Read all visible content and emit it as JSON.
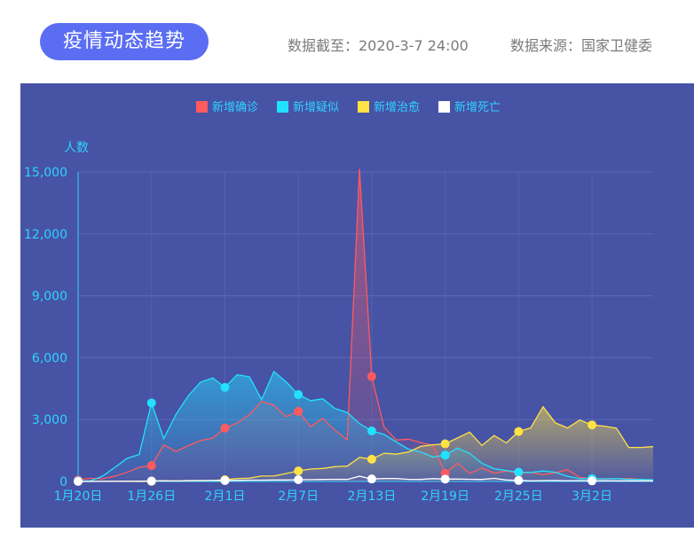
{
  "header": {
    "title": "疫情动态趋势",
    "as_of": "数据截至：2020-3-7 24:00",
    "source": "数据来源：国家卫健委"
  },
  "colors": {
    "panel_bg": "#4753a5",
    "confirmed": "#ff5a5f",
    "suspected": "#22e1ff",
    "cured": "#ffe245",
    "death": "#ffffff",
    "axis_text": "#2fd3ff",
    "grid": "#5d69b4"
  },
  "chart_data": {
    "type": "line",
    "ylabel": "人数",
    "ylim": [
      0,
      15000
    ],
    "y_ticks": [
      "0",
      "3,000",
      "6,000",
      "9,000",
      "12,000",
      "15,000"
    ],
    "y_tick_values": [
      0,
      3000,
      6000,
      9000,
      12000,
      15000
    ],
    "x_tick_labels": [
      "1月20日",
      "1月26日",
      "2月1日",
      "2月7日",
      "2月13日",
      "2月19日",
      "2月25日",
      "3月2日"
    ],
    "x_tick_index": [
      0,
      6,
      12,
      18,
      24,
      30,
      36,
      42
    ],
    "x_dates": [
      "1/20",
      "1/21",
      "1/22",
      "1/23",
      "1/24",
      "1/25",
      "1/26",
      "1/27",
      "1/28",
      "1/29",
      "1/30",
      "1/31",
      "2/1",
      "2/2",
      "2/3",
      "2/4",
      "2/5",
      "2/6",
      "2/7",
      "2/8",
      "2/9",
      "2/10",
      "2/11",
      "2/12",
      "2/13",
      "2/14",
      "2/15",
      "2/16",
      "2/17",
      "2/18",
      "2/19",
      "2/20",
      "2/21",
      "2/22",
      "2/23",
      "2/24",
      "2/25",
      "2/26",
      "2/27",
      "2/28",
      "2/29",
      "3/1",
      "3/2",
      "3/3",
      "3/4",
      "3/5",
      "3/6",
      "3/7"
    ],
    "legend": "top-center",
    "grid": true,
    "series": [
      {
        "name": "新增确诊",
        "color": "#ff5a5f",
        "values": [
          77,
          149,
          131,
          259,
          444,
          688,
          769,
          1771,
          1459,
          1737,
          1982,
          2102,
          2590,
          2829,
          3235,
          3887,
          3694,
          3143,
          3399,
          2656,
          3062,
          2478,
          2015,
          15152,
          5090,
          2641,
          2009,
          2048,
          1886,
          1749,
          394,
          889,
          397,
          648,
          409,
          508,
          406,
          433,
          327,
          427,
          573,
          202,
          125,
          119,
          139,
          143,
          99,
          44
        ],
        "markers": [
          0,
          6,
          12,
          18,
          24,
          30,
          36,
          42
        ]
      },
      {
        "name": "新增疑似",
        "color": "#22e1ff",
        "values": [
          27,
          26,
          257,
          680,
          1118,
          1309,
          3806,
          2077,
          3248,
          4148,
          4812,
          5019,
          4562,
          5173,
          5072,
          3971,
          5328,
          4833,
          4214,
          3916,
          4008,
          3536,
          3342,
          2807,
          2450,
          2277,
          1918,
          1563,
          1432,
          1185,
          1277,
          1614,
          1361,
          882,
          620,
          530,
          452,
          439,
          508,
          446,
          248,
          132,
          141,
          129,
          143,
          102,
          99,
          84
        ],
        "markers": [
          0,
          6,
          12,
          18,
          24,
          30,
          36,
          42
        ]
      },
      {
        "name": "新增治愈",
        "color": "#ffe245",
        "values": [
          0,
          0,
          3,
          6,
          11,
          2,
          9,
          43,
          21,
          47,
          43,
          46,
          85,
          147,
          157,
          262,
          261,
          387,
          510,
          600,
          632,
          716,
          744,
          1171,
          1081,
          1373,
          1323,
          1425,
          1701,
          1779,
          1824,
          2109,
          2393,
          1747,
          2227,
          1868,
          2422,
          2602,
          3622,
          2847,
          2597,
          2980,
          2742,
          2680,
          2589,
          1650,
          1652,
          1687
        ],
        "markers": [
          6,
          12,
          18,
          24,
          30,
          36,
          42
        ]
      },
      {
        "name": "新增死亡",
        "color": "#ffffff",
        "values": [
          3,
          3,
          8,
          8,
          16,
          15,
          24,
          26,
          26,
          38,
          43,
          46,
          45,
          57,
          64,
          65,
          73,
          73,
          86,
          89,
          97,
          108,
          97,
          254,
          121,
          143,
          142,
          105,
          98,
          136,
          114,
          118,
          109,
          97,
          150,
          71,
          52,
          29,
          44,
          47,
          35,
          42,
          31,
          38,
          31,
          30,
          28,
          27
        ],
        "markers": [
          0,
          6,
          12,
          18,
          24,
          30,
          36,
          42
        ]
      }
    ]
  }
}
